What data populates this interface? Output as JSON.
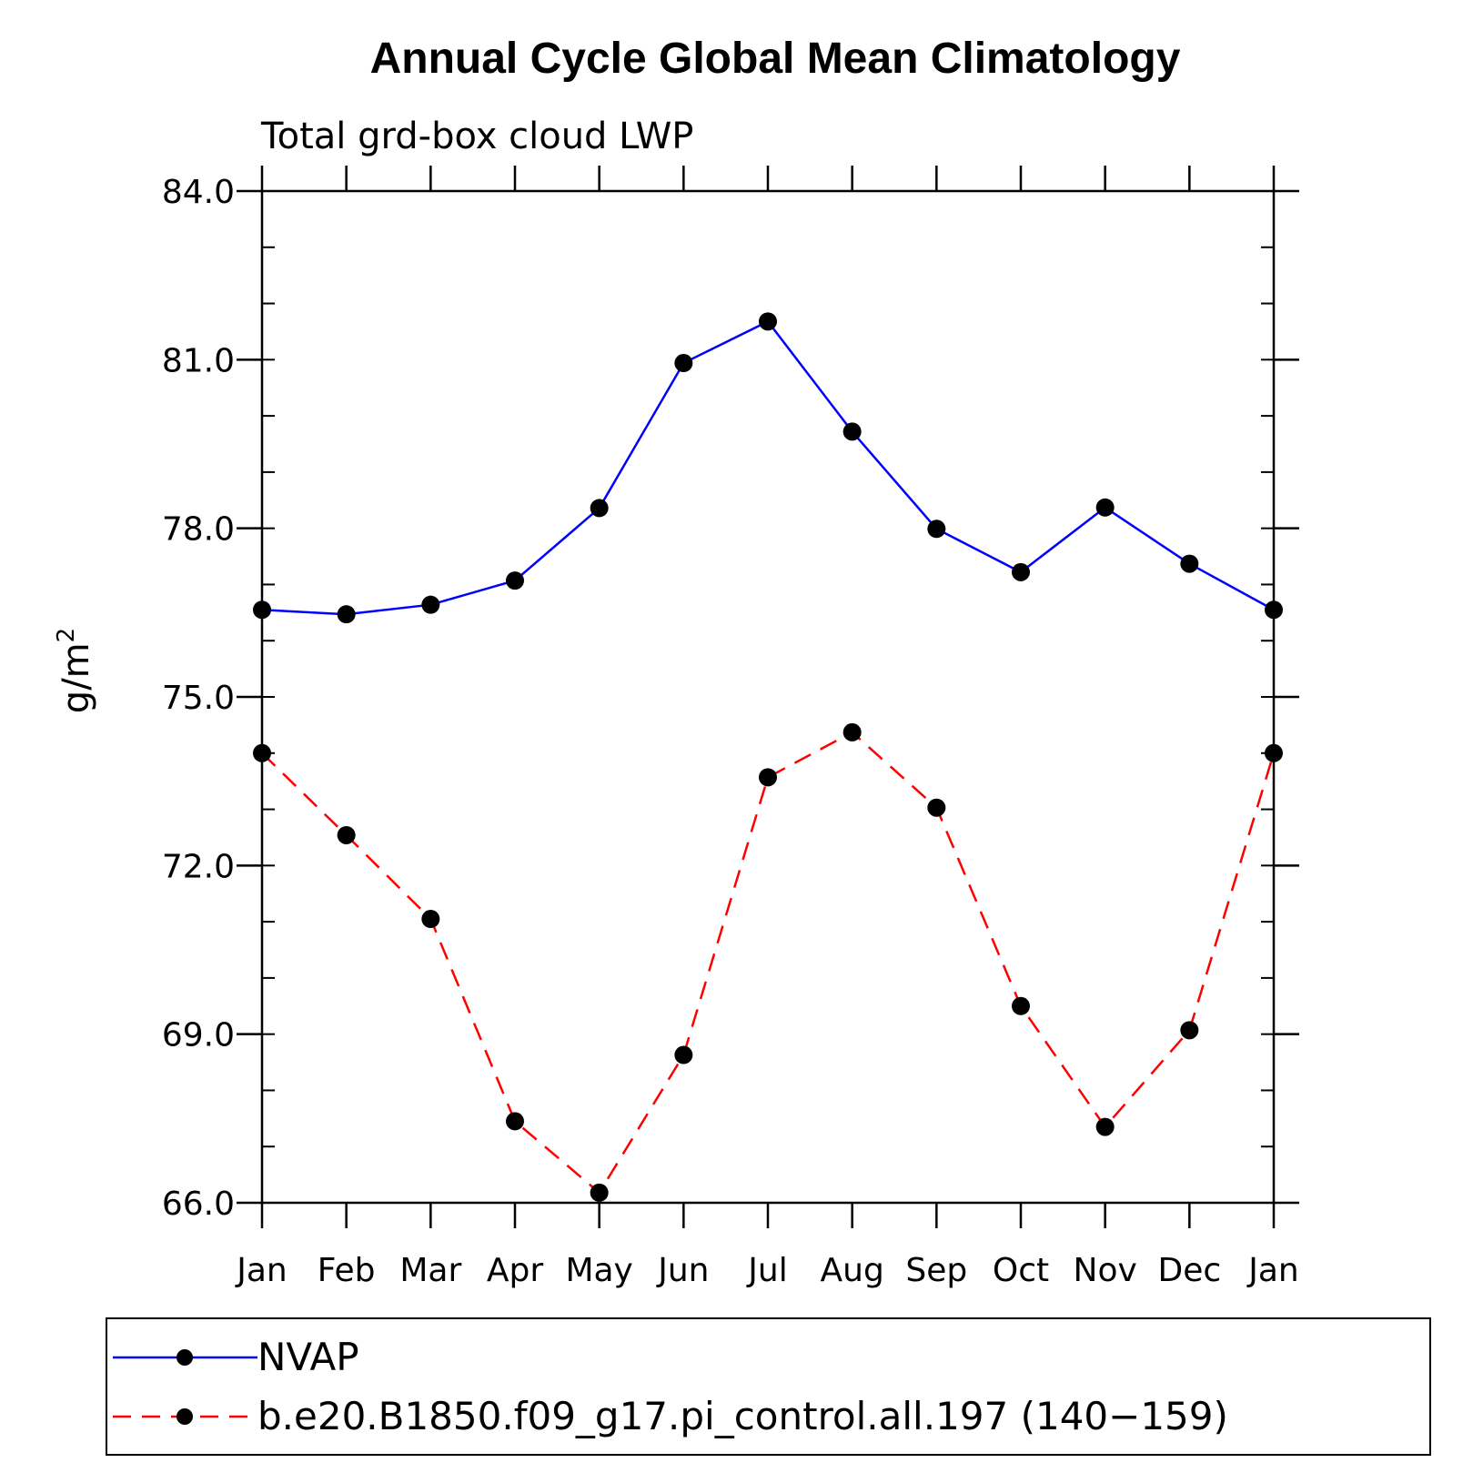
{
  "chart_data": {
    "type": "line",
    "title": "Annual Cycle Global Mean Climatology",
    "subtitle": "Total grd-box cloud LWP",
    "ylabel": "g/m",
    "ylabel_superscript": "2",
    "xlabel": "",
    "ylim": [
      66.0,
      84.0
    ],
    "yticks": [
      "66.0",
      "69.0",
      "72.0",
      "75.0",
      "78.0",
      "81.0",
      "84.0"
    ],
    "categories": [
      "Jan",
      "Feb",
      "Mar",
      "Apr",
      "May",
      "Jun",
      "Jul",
      "Aug",
      "Sep",
      "Oct",
      "Nov",
      "Dec",
      "Jan"
    ],
    "grid": false,
    "legend_position": "bottom",
    "series": [
      {
        "name": "NVAP",
        "color": "#0000ff",
        "line_style": "solid",
        "marker": "filled-circle",
        "values": [
          76.55,
          76.47,
          76.64,
          77.07,
          78.36,
          80.94,
          81.68,
          79.72,
          77.99,
          77.22,
          78.37,
          77.37,
          76.55
        ]
      },
      {
        "name": "b.e20.B1850.f09_g17.pi_control.all.197 (140−159)",
        "color": "#ff0000",
        "line_style": "dashed",
        "marker": "filled-circle",
        "values": [
          74.0,
          72.54,
          71.05,
          67.45,
          66.18,
          68.63,
          73.57,
          74.37,
          73.03,
          69.5,
          67.35,
          69.07,
          74.0
        ]
      }
    ]
  }
}
